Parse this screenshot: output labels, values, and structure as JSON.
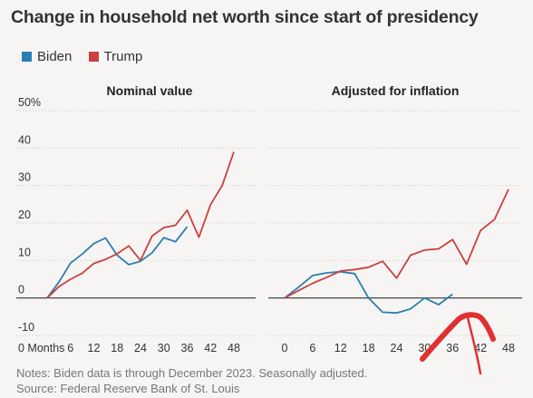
{
  "title": "Change in household net worth since start of presidency",
  "legend": [
    {
      "name": "Biden",
      "color": "#2b7fb0"
    },
    {
      "name": "Trump",
      "color": "#c94140"
    }
  ],
  "notes": "Notes: Biden data is through December 2023. Seasonally adjusted.",
  "source": "Source: Federal Reserve Bank of St. Louis",
  "chart_data": [
    {
      "type": "line",
      "title": "Nominal value",
      "xlabel": "Months",
      "ylabel": "",
      "y_unit": "%",
      "xlim": [
        0,
        48
      ],
      "ylim": [
        -10,
        50
      ],
      "x_ticks": [
        "0 Months",
        "6",
        "12",
        "18",
        "24",
        "30",
        "36",
        "42",
        "48"
      ],
      "y_ticks": [
        "50%",
        "40",
        "30",
        "20",
        "10",
        "0",
        "-10"
      ],
      "grid": true,
      "series": [
        {
          "name": "Biden",
          "color": "#2b7fb0",
          "x": [
            0,
            3,
            6,
            9,
            12,
            15,
            18,
            21,
            24,
            27,
            30,
            33,
            36
          ],
          "y": [
            0,
            4.2,
            9.3,
            11.7,
            14.5,
            16,
            11.4,
            8.9,
            9.8,
            12.1,
            16.1,
            15,
            19
          ]
        },
        {
          "name": "Trump",
          "color": "#c94140",
          "x": [
            0,
            3,
            6,
            9,
            12,
            15,
            18,
            21,
            24,
            27,
            30,
            33,
            36,
            39,
            42,
            45,
            48
          ],
          "y": [
            0,
            3,
            5,
            6.6,
            9.2,
            10.3,
            11.8,
            13.9,
            10,
            16.6,
            18.8,
            19.4,
            23.4,
            16.2,
            24.9,
            30,
            39
          ]
        }
      ]
    },
    {
      "type": "line",
      "title": "Adjusted for inflation",
      "xlabel": "",
      "ylabel": "",
      "xlim": [
        0,
        48
      ],
      "ylim": [
        -10,
        50
      ],
      "x_ticks": [
        "0",
        "6",
        "12",
        "18",
        "24",
        "30",
        "36",
        "42",
        "48"
      ],
      "grid": true,
      "series": [
        {
          "name": "Biden",
          "color": "#2b7fb0",
          "x": [
            0,
            3,
            6,
            9,
            12,
            15,
            18,
            21,
            24,
            27,
            30,
            33,
            36
          ],
          "y": [
            0,
            2.9,
            6,
            6.7,
            7,
            6.5,
            0,
            -3.8,
            -4,
            -2.9,
            0,
            -1.8,
            1
          ]
        },
        {
          "name": "Trump",
          "color": "#c94140",
          "x": [
            0,
            3,
            6,
            9,
            12,
            15,
            18,
            21,
            24,
            27,
            30,
            33,
            36,
            39,
            42,
            45,
            48
          ],
          "y": [
            0,
            2,
            3.9,
            5.5,
            7.2,
            7.6,
            8.2,
            9.8,
            5.3,
            11.4,
            12.8,
            13.1,
            15.6,
            9,
            18,
            21,
            29
          ]
        }
      ]
    }
  ]
}
